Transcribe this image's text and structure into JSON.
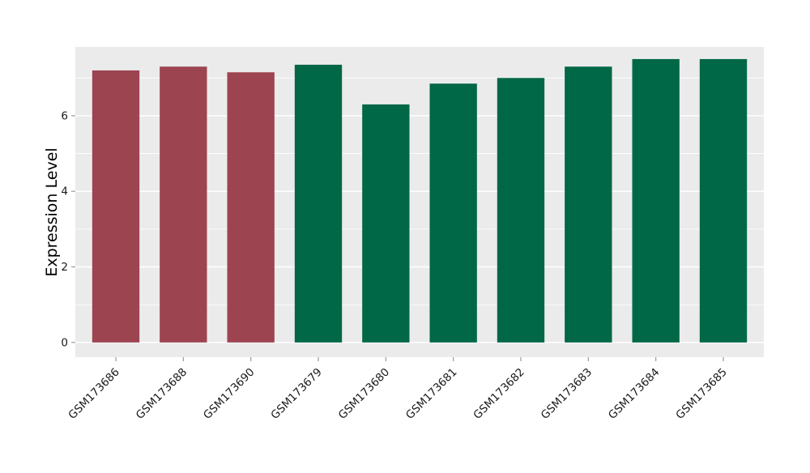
{
  "chart_data": {
    "type": "bar",
    "title": "",
    "xlabel": "",
    "ylabel": "Expression Level",
    "categories": [
      "GSM173686",
      "GSM173688",
      "GSM173690",
      "GSM173679",
      "GSM173680",
      "GSM173681",
      "GSM173682",
      "GSM173683",
      "GSM173684",
      "GSM173685"
    ],
    "values": [
      7.2,
      7.3,
      7.15,
      7.35,
      6.3,
      6.85,
      7.0,
      7.3,
      7.5,
      7.5
    ],
    "bar_colors": [
      "#9C4450",
      "#9C4450",
      "#9C4450",
      "#006747",
      "#006747",
      "#006747",
      "#006747",
      "#006747",
      "#006747",
      "#006747"
    ],
    "group_colors": {
      "red_group": "#9C4450",
      "green_group": "#006747"
    },
    "yticks": [
      0,
      2,
      4,
      6
    ],
    "minor_yticks": [
      1,
      3,
      5,
      7
    ],
    "ylim": [
      -0.39,
      7.82
    ],
    "bar_width_fraction": 0.7,
    "category_expand": 0.6,
    "grid": true,
    "legend_position": "none",
    "panel_bg": "#EBEBEB",
    "grid_color": "#FFFFFF",
    "tick_color": "#9A9A9A",
    "label_color": "#1A1A1A",
    "axis_title_color": "#000000"
  }
}
